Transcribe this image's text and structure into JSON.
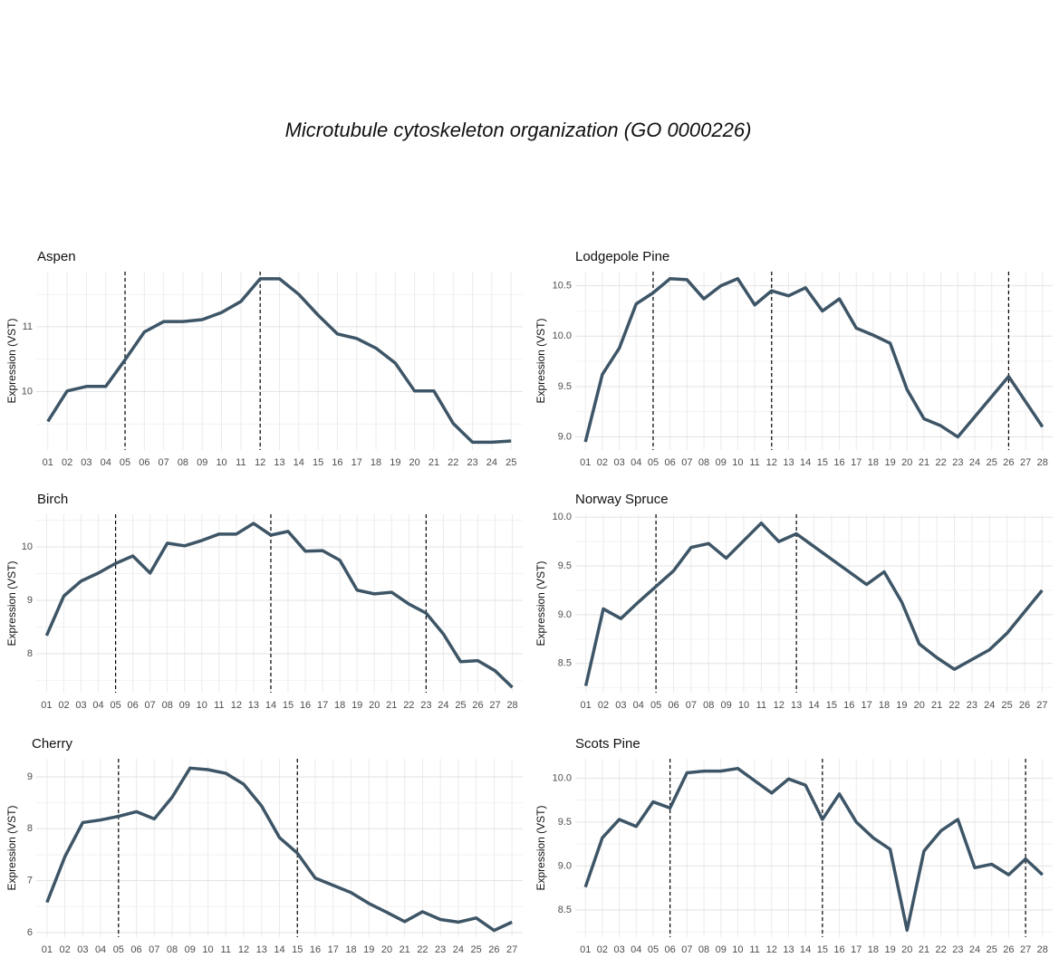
{
  "title": "Microtubule cytoskeleton organization (GO 0000226)",
  "chart_data": [
    {
      "type": "line",
      "title": "Aspen",
      "y_label": "Expression (VST)",
      "color": "#3d5566",
      "grid": true,
      "categories": [
        "01",
        "02",
        "03",
        "04",
        "05",
        "06",
        "07",
        "08",
        "09",
        "10",
        "11",
        "12",
        "13",
        "14",
        "15",
        "16",
        "17",
        "18",
        "19",
        "20",
        "21",
        "22",
        "23",
        "24",
        "25"
      ],
      "values": [
        9.54,
        10.01,
        10.08,
        10.08,
        10.49,
        10.92,
        11.08,
        11.08,
        11.11,
        11.22,
        11.39,
        11.74,
        11.74,
        11.5,
        11.18,
        10.89,
        10.82,
        10.67,
        10.44,
        10.01,
        10.01,
        9.51,
        9.22,
        9.22,
        9.24
      ],
      "ylim": [
        9.1,
        11.85
      ],
      "yticks": [
        10,
        11
      ],
      "vlines": [
        "05",
        "12"
      ]
    },
    {
      "type": "line",
      "title": "Lodgepole Pine",
      "y_label": "Expression (VST)",
      "color": "#3d5566",
      "grid": true,
      "categories": [
        "01",
        "02",
        "03",
        "04",
        "05",
        "06",
        "07",
        "08",
        "09",
        "10",
        "11",
        "12",
        "13",
        "14",
        "15",
        "16",
        "17",
        "18",
        "19",
        "20",
        "21",
        "22",
        "23",
        "24",
        "25",
        "26",
        "27",
        "28"
      ],
      "values": [
        8.95,
        9.62,
        9.88,
        10.32,
        10.43,
        10.57,
        10.56,
        10.37,
        10.5,
        10.57,
        10.31,
        10.45,
        10.4,
        10.48,
        10.25,
        10.37,
        10.08,
        10.01,
        9.93,
        9.47,
        9.18,
        9.11,
        9.0,
        9.2,
        9.4,
        9.6,
        9.35,
        9.1
      ],
      "ylim": [
        8.87,
        10.64
      ],
      "yticks": [
        {
          "value": 9,
          "label": "9.0"
        },
        9.5,
        {
          "value": 10,
          "label": "10.0"
        },
        10.5
      ],
      "vlines": [
        "05",
        "12",
        "26"
      ]
    },
    {
      "type": "line",
      "title": "Birch",
      "y_label": "Expression (VST)",
      "color": "#3d5566",
      "grid": true,
      "categories": [
        "01",
        "02",
        "03",
        "04",
        "05",
        "06",
        "07",
        "08",
        "09",
        "10",
        "11",
        "12",
        "13",
        "14",
        "15",
        "16",
        "17",
        "18",
        "19",
        "20",
        "21",
        "22",
        "23",
        "24",
        "25",
        "26",
        "27",
        "28"
      ],
      "values": [
        8.34,
        9.08,
        9.36,
        9.51,
        9.69,
        9.83,
        9.51,
        10.07,
        10.02,
        10.12,
        10.24,
        10.24,
        10.44,
        10.22,
        10.29,
        9.92,
        9.93,
        9.75,
        9.19,
        9.12,
        9.15,
        8.93,
        8.76,
        8.37,
        7.85,
        7.87,
        7.68,
        7.37
      ],
      "ylim": [
        7.27,
        10.61
      ],
      "yticks": [
        8,
        9,
        10
      ],
      "vlines": [
        "05",
        "14",
        "23"
      ]
    },
    {
      "type": "line",
      "title": "Norway Spruce",
      "y_label": "Expression (VST)",
      "color": "#3d5566",
      "grid": true,
      "categories": [
        "01",
        "02",
        "03",
        "04",
        "05",
        "06",
        "07",
        "08",
        "09",
        "10",
        "11",
        "12",
        "13",
        "14",
        "15",
        "16",
        "17",
        "18",
        "19",
        "20",
        "21",
        "22",
        "23",
        "24",
        "25",
        "26",
        "27"
      ],
      "values": [
        8.27,
        9.06,
        8.96,
        9.13,
        9.29,
        9.45,
        9.69,
        9.73,
        9.58,
        9.76,
        9.94,
        9.75,
        9.83,
        9.7,
        9.57,
        9.44,
        9.31,
        9.44,
        9.13,
        8.7,
        8.56,
        8.44,
        8.54,
        8.64,
        8.81,
        9.03,
        9.25
      ],
      "ylim": [
        8.2,
        10.03
      ],
      "yticks": [
        8.5,
        {
          "value": 9,
          "label": "9.0"
        },
        9.5,
        {
          "value": 10,
          "label": "10.0"
        }
      ],
      "vlines": [
        "05",
        "13"
      ]
    },
    {
      "type": "line",
      "title": "Cherry",
      "y_label": "Expression (VST)",
      "color": "#3d5566",
      "grid": true,
      "categories": [
        "01",
        "02",
        "03",
        "04",
        "05",
        "06",
        "07",
        "08",
        "09",
        "10",
        "11",
        "12",
        "13",
        "14",
        "15",
        "16",
        "17",
        "18",
        "19",
        "20",
        "21",
        "22",
        "23",
        "24",
        "25",
        "26",
        "27"
      ],
      "values": [
        6.58,
        7.46,
        8.12,
        8.17,
        8.24,
        8.33,
        8.19,
        8.61,
        9.17,
        9.14,
        9.07,
        8.86,
        8.44,
        7.83,
        7.53,
        7.05,
        6.91,
        6.77,
        6.56,
        6.39,
        6.21,
        6.4,
        6.25,
        6.2,
        6.28,
        6.04,
        6.2
      ],
      "ylim": [
        5.91,
        9.35
      ],
      "yticks": [
        6,
        7,
        8,
        9
      ],
      "vlines": [
        "05",
        "15"
      ]
    },
    {
      "type": "line",
      "title": "Scots Pine",
      "y_label": "Expression (VST)",
      "color": "#3d5566",
      "grid": true,
      "categories": [
        "01",
        "02",
        "03",
        "04",
        "05",
        "06",
        "07",
        "08",
        "09",
        "10",
        "11",
        "12",
        "13",
        "14",
        "15",
        "16",
        "17",
        "18",
        "19",
        "20",
        "21",
        "22",
        "23",
        "24",
        "25",
        "26",
        "27",
        "28"
      ],
      "values": [
        8.76,
        9.32,
        9.53,
        9.45,
        9.73,
        9.66,
        10.06,
        10.08,
        10.08,
        10.11,
        9.97,
        9.83,
        9.99,
        9.92,
        9.53,
        9.82,
        9.5,
        9.32,
        9.19,
        8.27,
        9.17,
        9.4,
        9.53,
        8.98,
        9.02,
        8.9,
        9.08,
        8.9
      ],
      "ylim": [
        8.19,
        10.22
      ],
      "yticks": [
        8.5,
        {
          "value": 9,
          "label": "9.0"
        },
        9.5,
        {
          "value": 10,
          "label": "10.0"
        }
      ],
      "vlines": [
        "06",
        "15",
        "27"
      ]
    }
  ]
}
